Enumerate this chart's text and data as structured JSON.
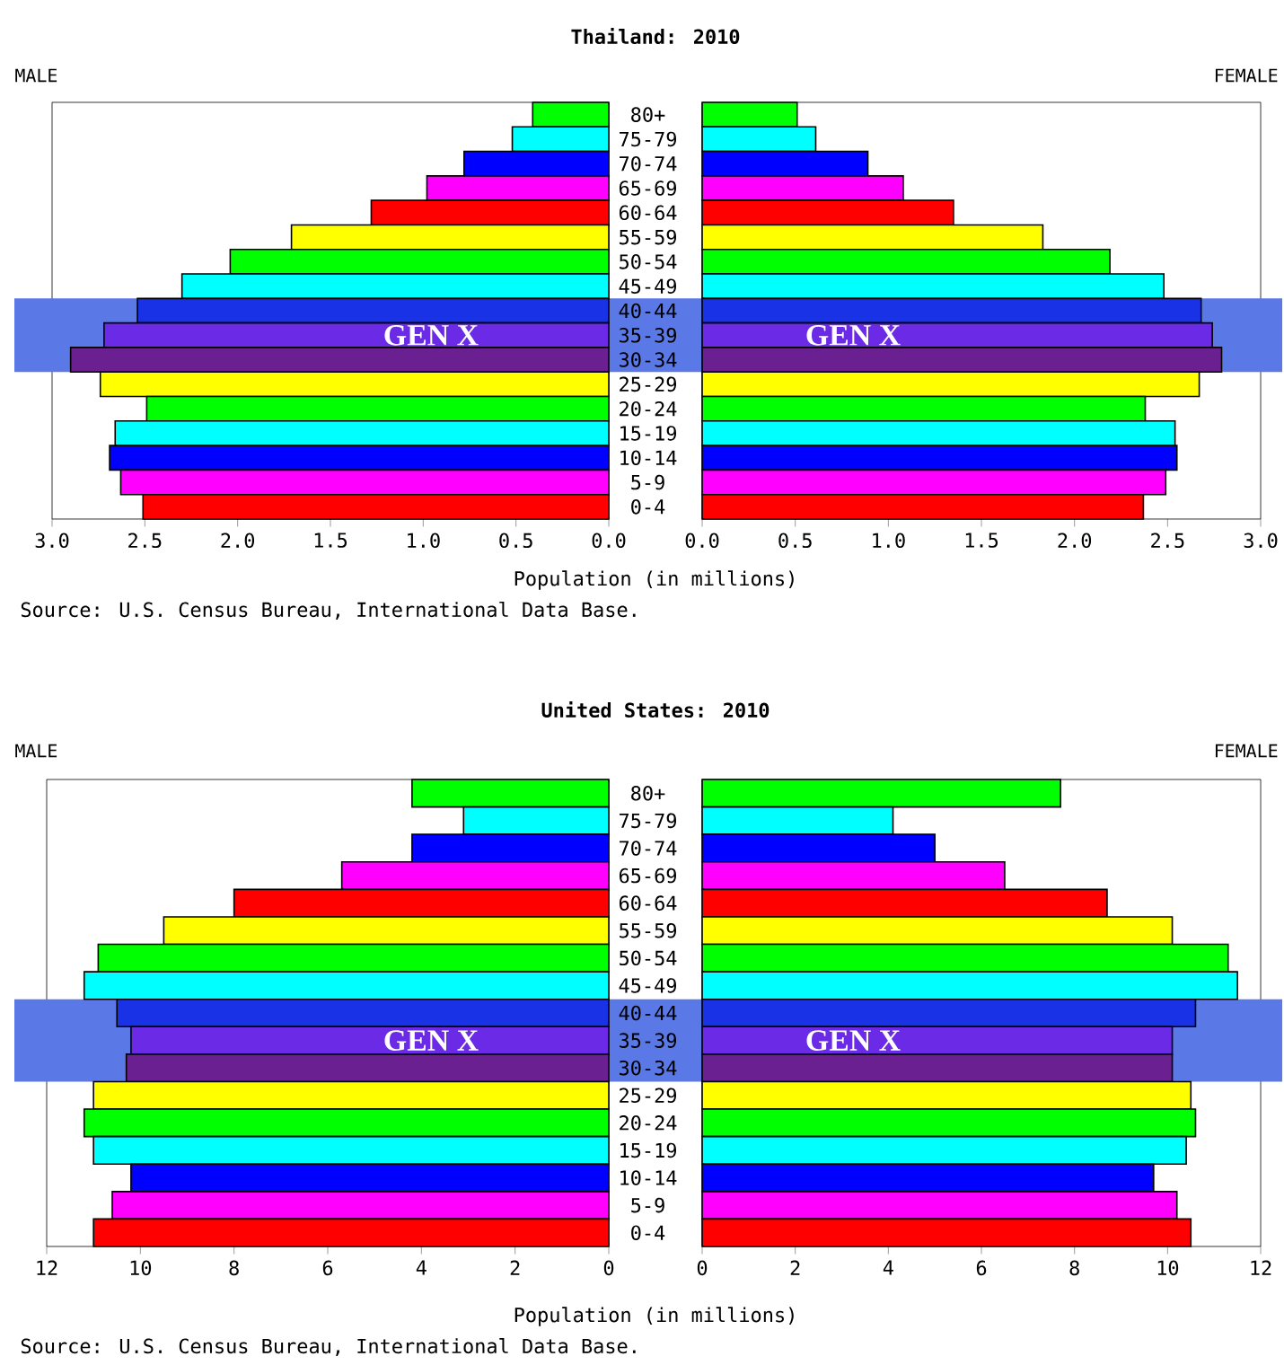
{
  "chart_data": [
    {
      "type": "bar",
      "orientation": "horizontal",
      "title": "Thailand: 2010",
      "subtitle": "MALE",
      "xlabel": "Population (in millions)",
      "annotations": [
        "Source: U.S. Census Bureau, International Data Base."
      ],
      "tick_labels": "x",
      "categories": [
        "80+",
        "75-79",
        "70-74",
        "65-69",
        "60-64",
        "55-59",
        "50-54",
        "45-49",
        "40-44",
        "35-39",
        "30-34",
        "25-29",
        "20-24",
        "15-19",
        "10-14",
        "5-9",
        "0-4"
      ],
      "values": [
        0.41,
        0.52,
        0.78,
        0.98,
        1.28,
        1.71,
        2.04,
        2.3,
        2.54,
        2.72,
        2.9,
        2.74,
        2.49,
        2.66,
        2.69,
        2.63,
        2.51
      ],
      "colors": [
        "#00ff00",
        "#00ffff",
        "#0000ff",
        "#ff00ff",
        "#ff0000",
        "#ffff00",
        "#00ff00",
        "#00ffff",
        "#1a32e6",
        "#6a2ae6",
        "#6a2090",
        "#ffff00",
        "#00ff00",
        "#00ffff",
        "#0000ff",
        "#ff00ff",
        "#ff0000"
      ],
      "xlim": [
        3,
        0
      ],
      "xticks": [
        {
          "value": 3,
          "label": "3.0"
        },
        {
          "value": 2.5,
          "label": "2.5"
        },
        {
          "value": 2,
          "label": "2.0"
        },
        {
          "value": 1.5,
          "label": "1.5"
        },
        {
          "value": 1,
          "label": "1.0"
        },
        {
          "value": 0.5,
          "label": "0.5"
        },
        {
          "value": 0,
          "label": "0.0"
        }
      ],
      "bands": [
        {
          "axis": "y",
          "from": "40-44",
          "to": "30-34",
          "label": "GEN X",
          "color": "#5b79e6"
        }
      ]
    },
    {
      "type": "bar",
      "orientation": "horizontal",
      "subtitle": "FEMALE",
      "categories": [
        "80+",
        "75-79",
        "70-74",
        "65-69",
        "60-64",
        "55-59",
        "50-54",
        "45-49",
        "40-44",
        "35-39",
        "30-34",
        "25-29",
        "20-24",
        "15-19",
        "10-14",
        "5-9",
        "0-4"
      ],
      "values": [
        0.51,
        0.61,
        0.89,
        1.08,
        1.35,
        1.83,
        2.19,
        2.48,
        2.68,
        2.74,
        2.79,
        2.67,
        2.38,
        2.54,
        2.55,
        2.49,
        2.37
      ],
      "colors": [
        "#00ff00",
        "#00ffff",
        "#0000ff",
        "#ff00ff",
        "#ff0000",
        "#ffff00",
        "#00ff00",
        "#00ffff",
        "#1a32e6",
        "#6a2ae6",
        "#6a2090",
        "#ffff00",
        "#00ff00",
        "#00ffff",
        "#0000ff",
        "#ff00ff",
        "#ff0000"
      ],
      "xlim": [
        0,
        3
      ],
      "xticks": [
        {
          "value": 0,
          "label": "0.0"
        },
        {
          "value": 0.5,
          "label": "0.5"
        },
        {
          "value": 1,
          "label": "1.0"
        },
        {
          "value": 1.5,
          "label": "1.5"
        },
        {
          "value": 2,
          "label": "2.0"
        },
        {
          "value": 2.5,
          "label": "2.5"
        },
        {
          "value": 3,
          "label": "3.0"
        }
      ],
      "bands": [
        {
          "axis": "y",
          "from": "40-44",
          "to": "30-34",
          "label": "GEN X",
          "color": "#5b79e6"
        }
      ]
    },
    {
      "type": "bar",
      "orientation": "horizontal",
      "title": "United States: 2010",
      "subtitle": "MALE",
      "xlabel": "Population (in millions)",
      "annotations": [
        "Source: U.S. Census Bureau, International Data Base."
      ],
      "tick_labels": "x",
      "categories": [
        "80+",
        "75-79",
        "70-74",
        "65-69",
        "60-64",
        "55-59",
        "50-54",
        "45-49",
        "40-44",
        "35-39",
        "30-34",
        "25-29",
        "20-24",
        "15-19",
        "10-14",
        "5-9",
        "0-4"
      ],
      "values": [
        4.2,
        3.1,
        4.2,
        5.7,
        8.0,
        9.5,
        10.9,
        11.2,
        10.5,
        10.2,
        10.3,
        11.0,
        11.2,
        11.0,
        10.2,
        10.6,
        11.0
      ],
      "colors": [
        "#00ff00",
        "#00ffff",
        "#0000ff",
        "#ff00ff",
        "#ff0000",
        "#ffff00",
        "#00ff00",
        "#00ffff",
        "#1a32e6",
        "#6a2ae6",
        "#6a2090",
        "#ffff00",
        "#00ff00",
        "#00ffff",
        "#0000ff",
        "#ff00ff",
        "#ff0000"
      ],
      "xlim": [
        12,
        0
      ],
      "xticks": [
        12,
        10,
        8,
        6,
        4,
        2,
        0
      ],
      "bands": [
        {
          "axis": "y",
          "from": "40-44",
          "to": "30-34",
          "label": "GEN X",
          "color": "#5b79e6"
        }
      ]
    },
    {
      "type": "bar",
      "orientation": "horizontal",
      "subtitle": "FEMALE",
      "categories": [
        "80+",
        "75-79",
        "70-74",
        "65-69",
        "60-64",
        "55-59",
        "50-54",
        "45-49",
        "40-44",
        "35-39",
        "30-34",
        "25-29",
        "20-24",
        "15-19",
        "10-14",
        "5-9",
        "0-4"
      ],
      "values": [
        7.7,
        4.1,
        5.0,
        6.5,
        8.7,
        10.1,
        11.3,
        11.5,
        10.6,
        10.1,
        10.1,
        10.5,
        10.6,
        10.4,
        9.7,
        10.2,
        10.5
      ],
      "colors": [
        "#00ff00",
        "#00ffff",
        "#0000ff",
        "#ff00ff",
        "#ff0000",
        "#ffff00",
        "#00ff00",
        "#00ffff",
        "#1a32e6",
        "#6a2ae6",
        "#6a2090",
        "#ffff00",
        "#00ff00",
        "#00ffff",
        "#0000ff",
        "#ff00ff",
        "#ff0000"
      ],
      "xlim": [
        0,
        12
      ],
      "xticks": [
        0,
        2,
        4,
        6,
        8,
        10,
        12
      ],
      "bands": [
        {
          "axis": "y",
          "from": "40-44",
          "to": "30-34",
          "label": "GEN X",
          "color": "#5b79e6"
        }
      ]
    }
  ]
}
